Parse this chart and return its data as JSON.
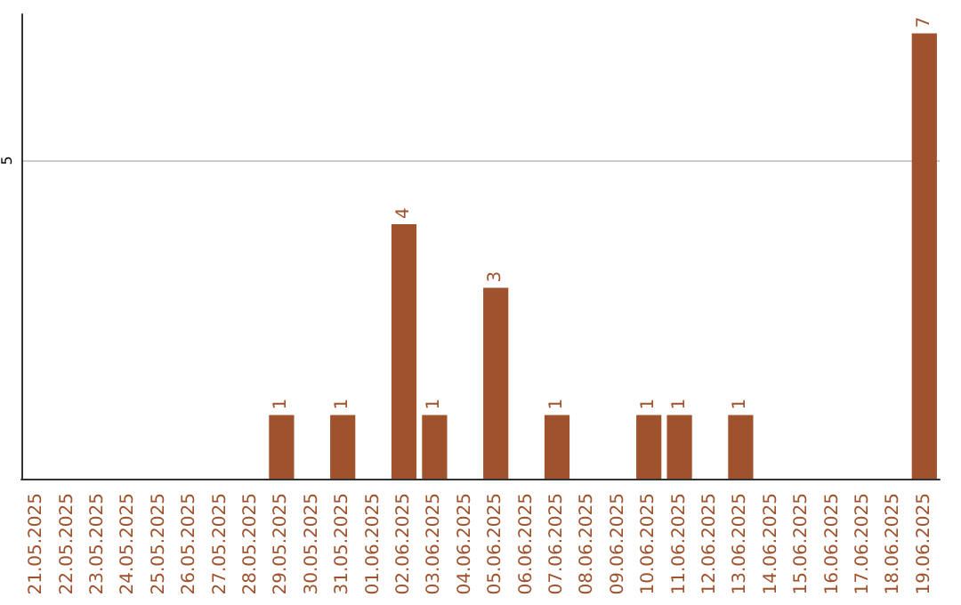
{
  "chart_data": {
    "type": "bar",
    "categories": [
      "21.05.2025",
      "22.05.2025",
      "23.05.2025",
      "24.05.2025",
      "25.05.2025",
      "26.05.2025",
      "27.05.2025",
      "28.05.2025",
      "29.05.2025",
      "30.05.2025",
      "31.05.2025",
      "01.06.2025",
      "02.06.2025",
      "03.06.2025",
      "04.06.2025",
      "05.06.2025",
      "06.06.2025",
      "07.06.2025",
      "08.06.2025",
      "09.06.2025",
      "10.06.2025",
      "11.06.2025",
      "12.06.2025",
      "13.06.2025",
      "14.06.2025",
      "15.06.2025",
      "16.06.2025",
      "17.06.2025",
      "18.06.2025",
      "19.06.2025"
    ],
    "values": [
      0,
      0,
      0,
      0,
      0,
      0,
      0,
      0,
      1,
      0,
      1,
      0,
      4,
      1,
      0,
      3,
      0,
      1,
      0,
      0,
      1,
      1,
      0,
      1,
      0,
      0,
      0,
      0,
      0,
      7
    ],
    "value_labels": [
      null,
      null,
      null,
      null,
      null,
      null,
      null,
      null,
      "1",
      null,
      "1",
      null,
      "4",
      "1",
      null,
      "3",
      null,
      "1",
      null,
      null,
      "1",
      "1",
      null,
      "1",
      null,
      null,
      null,
      null,
      null,
      "7"
    ],
    "color": "#a0522d",
    "ylim": [
      0,
      7.3
    ],
    "yticks": [
      5
    ],
    "grid": "y"
  }
}
